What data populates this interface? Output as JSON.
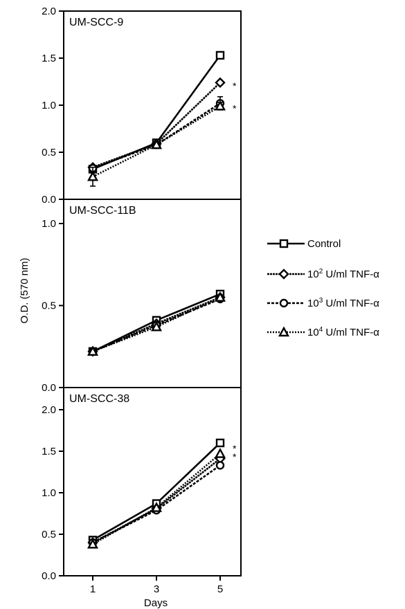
{
  "chart_data": {
    "type": "line",
    "xlabel": "Days",
    "ylabel": "O.D. (570 nm)",
    "x": [
      1,
      3,
      5
    ],
    "xticks": [
      "1",
      "3",
      "5"
    ],
    "legend": {
      "placement": "right",
      "entries": [
        {
          "key": "control",
          "label": "Control",
          "base": "",
          "exp": "",
          "marker": "square",
          "dash": "solid"
        },
        {
          "key": "tnf2",
          "label": "",
          "base": "10",
          "exp": "2",
          "unit": " U/ml TNF-α",
          "marker": "diamond",
          "dash": "dense"
        },
        {
          "key": "tnf3",
          "label": "",
          "base": "10",
          "exp": "3",
          "unit": " U/ml TNF-α",
          "marker": "circle",
          "dash": "dashed"
        },
        {
          "key": "tnf4",
          "label": "",
          "base": "10",
          "exp": "4",
          "unit": " U/ml TNF-α",
          "marker": "triangle",
          "dash": "dotted"
        }
      ]
    },
    "panels": [
      {
        "title": "UM-SCC-9",
        "ylim": [
          0,
          2.0
        ],
        "yticks": [
          "0.0",
          "0.5",
          "1.0",
          "1.5",
          "2.0"
        ],
        "ytick_values": [
          0,
          0.5,
          1.0,
          1.5,
          2.0
        ],
        "annotations": [
          {
            "text": "*",
            "y": 1.22
          },
          {
            "text": "*",
            "y": 0.98
          }
        ],
        "series": [
          {
            "key": "control",
            "values": [
              0.32,
              0.6,
              1.53
            ],
            "err": [
              0.02,
              0.02,
              0.02
            ]
          },
          {
            "key": "tnf2",
            "values": [
              0.34,
              0.59,
              1.24
            ],
            "err": [
              0.02,
              0.02,
              0.02
            ]
          },
          {
            "key": "tnf3",
            "values": [
              0.33,
              0.58,
              1.02
            ],
            "err": [
              0.02,
              0.02,
              0.07
            ]
          },
          {
            "key": "tnf4",
            "values": [
              0.24,
              0.58,
              0.99
            ],
            "err": [
              0.1,
              0.02,
              0.04
            ]
          }
        ]
      },
      {
        "title": "UM-SCC-11B",
        "ylim": [
          0,
          1.0
        ],
        "yticks": [
          "0.0",
          "0.5",
          "1.0"
        ],
        "ytick_values": [
          0,
          0.5,
          1.0
        ],
        "annotations": [],
        "series": [
          {
            "key": "control",
            "values": [
              0.22,
              0.41,
              0.57
            ],
            "err": [
              0.01,
              0.01,
              0.01
            ]
          },
          {
            "key": "tnf2",
            "values": [
              0.22,
              0.39,
              0.55
            ],
            "err": [
              0.01,
              0.01,
              0.01
            ]
          },
          {
            "key": "tnf3",
            "values": [
              0.22,
              0.38,
              0.54
            ],
            "err": [
              0.01,
              0.01,
              0.01
            ]
          },
          {
            "key": "tnf4",
            "values": [
              0.22,
              0.37,
              0.55
            ],
            "err": [
              0.01,
              0.01,
              0.01
            ]
          }
        ]
      },
      {
        "title": "UM-SCC-38",
        "ylim": [
          0,
          2.0
        ],
        "yticks": [
          "0.0",
          "0.5",
          "1.0",
          "1.5",
          "2.0"
        ],
        "ytick_values": [
          0,
          0.5,
          1.0,
          1.5,
          2.0
        ],
        "annotations": [
          {
            "text": "*",
            "y": 1.55
          },
          {
            "text": "*",
            "y": 1.45
          }
        ],
        "series": [
          {
            "key": "control",
            "values": [
              0.43,
              0.87,
              1.6
            ],
            "err": [
              0.02,
              0.02,
              0.02
            ]
          },
          {
            "key": "tnf2",
            "values": [
              0.4,
              0.81,
              1.41
            ],
            "err": [
              0.02,
              0.02,
              0.02
            ]
          },
          {
            "key": "tnf3",
            "values": [
              0.4,
              0.79,
              1.33
            ],
            "err": [
              0.02,
              0.02,
              0.02
            ]
          },
          {
            "key": "tnf4",
            "values": [
              0.38,
              0.82,
              1.47
            ],
            "err": [
              0.02,
              0.02,
              0.02
            ]
          }
        ]
      }
    ]
  }
}
